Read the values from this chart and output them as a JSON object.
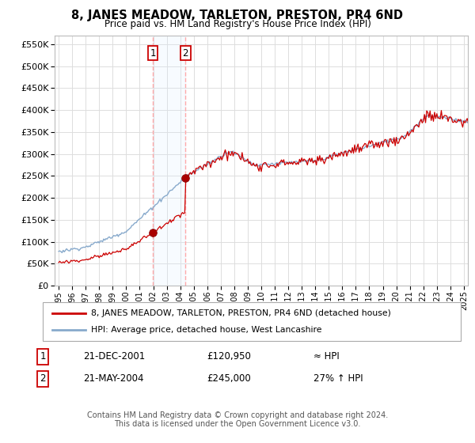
{
  "title": "8, JANES MEADOW, TARLETON, PRESTON, PR4 6ND",
  "subtitle": "Price paid vs. HM Land Registry's House Price Index (HPI)",
  "ylim": [
    0,
    570000
  ],
  "yticks": [
    0,
    50000,
    100000,
    150000,
    200000,
    250000,
    300000,
    350000,
    400000,
    450000,
    500000,
    550000
  ],
  "xlim_start": 1994.7,
  "xlim_end": 2025.3,
  "sale1_date_year": 2001.97,
  "sale1_price": 120950,
  "sale1_label": "1",
  "sale2_date_year": 2004.39,
  "sale2_price": 245000,
  "sale2_label": "2",
  "property_line_color": "#cc0000",
  "hpi_line_color": "#88aacc",
  "vline_color": "#ffaaaa",
  "highlight_color": "#ddeeff",
  "legend_label_property": "8, JANES MEADOW, TARLETON, PRESTON, PR4 6ND (detached house)",
  "legend_label_hpi": "HPI: Average price, detached house, West Lancashire",
  "footer": "Contains HM Land Registry data © Crown copyright and database right 2024.\nThis data is licensed under the Open Government Licence v3.0.",
  "background_color": "#ffffff",
  "grid_color": "#dddddd",
  "sale1_date_str": "21-DEC-2001",
  "sale1_price_str": "£120,950",
  "sale1_pct_str": "≈ HPI",
  "sale2_date_str": "21-MAY-2004",
  "sale2_price_str": "£245,000",
  "sale2_pct_str": "27% ↑ HPI"
}
